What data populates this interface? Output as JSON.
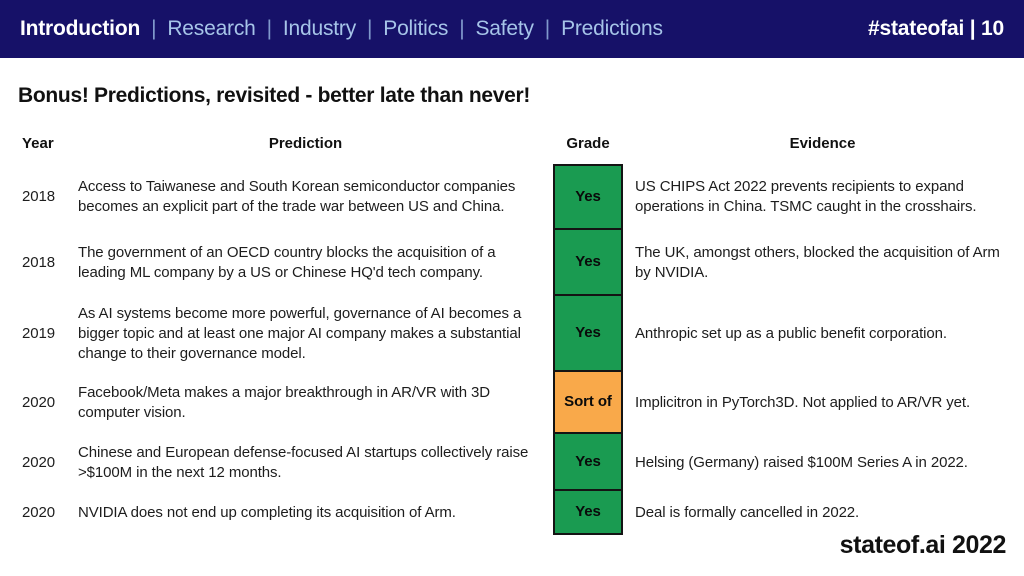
{
  "header": {
    "nav": [
      {
        "label": "Introduction",
        "active": true
      },
      {
        "label": "Research",
        "active": false
      },
      {
        "label": "Industry",
        "active": false
      },
      {
        "label": "Politics",
        "active": false
      },
      {
        "label": "Safety",
        "active": false
      },
      {
        "label": "Predictions",
        "active": false
      }
    ],
    "separator": "|",
    "right_tag": "#stateofai | 10"
  },
  "title": "Bonus! Predictions, revisited - better late than never!",
  "table": {
    "columns": [
      "Year",
      "Prediction",
      "Grade",
      "Evidence"
    ],
    "rows": [
      {
        "year": "2018",
        "prediction": "Access to Taiwanese and South Korean semiconductor companies becomes an explicit part of the trade war between US and China.",
        "grade": "Yes",
        "grade_color": "#1a9b51",
        "evidence": "US CHIPS Act 2022 prevents recipients to expand operations in China. TSMC caught in the crosshairs."
      },
      {
        "year": "2018",
        "prediction": "The government of an OECD country blocks the acquisition of a leading ML company by a US or Chinese HQ'd tech company.",
        "grade": "Yes",
        "grade_color": "#1a9b51",
        "evidence": "The UK, amongst others, blocked the acquisition of Arm by NVIDIA."
      },
      {
        "year": "2019",
        "prediction": "As AI systems become more powerful, governance of AI becomes a bigger topic and at least one major AI company makes a substantial change to their governance model.",
        "grade": "Yes",
        "grade_color": "#1a9b51",
        "evidence": "Anthropic set up as a public benefit corporation."
      },
      {
        "year": "2020",
        "prediction": "Facebook/Meta makes a major breakthrough in AR/VR with 3D computer vision.",
        "grade": "Sort of",
        "grade_color": "#f9a94a",
        "evidence": "Implicitron in PyTorch3D. Not applied to AR/VR yet."
      },
      {
        "year": "2020",
        "prediction": "Chinese and European defense-focused AI startups collectively raise >$100M in the next 12 months.",
        "grade": "Yes",
        "grade_color": "#1a9b51",
        "evidence": "Helsing (Germany) raised $100M Series A in 2022."
      },
      {
        "year": "2020",
        "prediction": "NVIDIA does not end up completing its acquisition of Arm.",
        "grade": "Yes",
        "grade_color": "#1a9b51",
        "evidence": "Deal is formally cancelled in 2022."
      }
    ]
  },
  "footer": {
    "brand": "stateof.ai 2022"
  },
  "colors": {
    "navy": "#161168",
    "nav_link": "#a6c4e8",
    "grade_yes": "#1a9b51",
    "grade_sort_of": "#f9a94a"
  }
}
